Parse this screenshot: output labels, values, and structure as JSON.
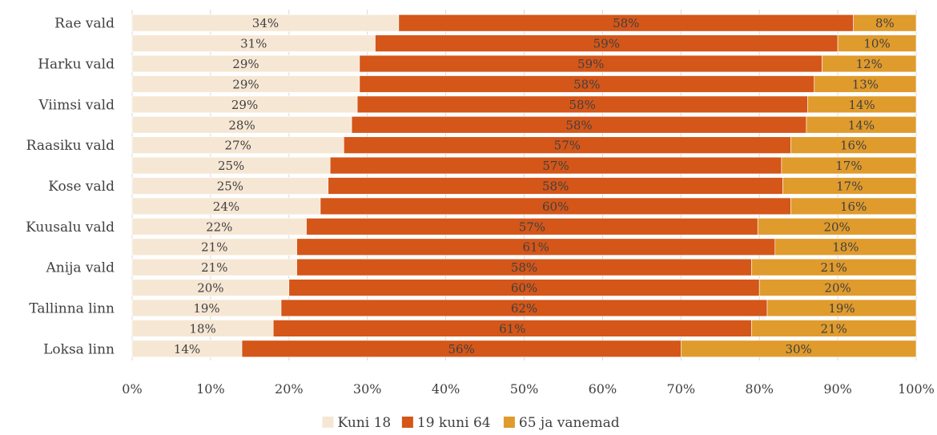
{
  "colors": {
    "kuni18": "#f6e7d4",
    "age19_64": "#d45619",
    "age65": "#e09b2d",
    "grid": "#d9d9d9",
    "text": "#404040"
  },
  "chart_data": {
    "type": "bar",
    "orientation": "horizontal",
    "stacked": "percent",
    "categories": [
      "Rae vald",
      "",
      "Harku vald",
      "",
      "Viimsi vald",
      "",
      "Raasiku vald",
      "",
      "Kose vald",
      "",
      "Kuusalu vald",
      "",
      "Anija vald",
      "",
      "Tallinna linn",
      "",
      "Loksa linn"
    ],
    "series": [
      {
        "name": "Kuni 18",
        "color": "#f6e7d4",
        "values": [
          34,
          31,
          29,
          29,
          29,
          28,
          27,
          25,
          25,
          24,
          22,
          21,
          21,
          20,
          19,
          18,
          14
        ],
        "labels": [
          "34%",
          "31%",
          "29%",
          "29%",
          "29%",
          "28%",
          "27%",
          "25%",
          "25%",
          "24%",
          "22%",
          "21%",
          "21%",
          "20%",
          "19%",
          "18%",
          "14%"
        ]
      },
      {
        "name": "19 kuni 64",
        "color": "#d45619",
        "values": [
          58,
          59,
          59,
          58,
          58,
          58,
          57,
          57,
          58,
          60,
          57,
          61,
          58,
          60,
          62,
          61,
          56
        ],
        "labels": [
          "58%",
          "59%",
          "59%",
          "58%",
          "58%",
          "58%",
          "57%",
          "57%",
          "58%",
          "60%",
          "57%",
          "61%",
          "58%",
          "60%",
          "62%",
          "61%",
          "56%"
        ]
      },
      {
        "name": "65 ja vanemad",
        "color": "#e09b2d",
        "values": [
          8,
          10,
          12,
          13,
          14,
          14,
          16,
          17,
          17,
          16,
          20,
          18,
          21,
          20,
          19,
          21,
          30
        ],
        "labels": [
          "8%",
          "10%",
          "12%",
          "13%",
          "14%",
          "14%",
          "16%",
          "17%",
          "17%",
          "16%",
          "20%",
          "18%",
          "21%",
          "20%",
          "19%",
          "21%",
          "30%"
        ]
      }
    ],
    "xlim": [
      0,
      100
    ],
    "xticks": [
      "0%",
      "10%",
      "20%",
      "30%",
      "40%",
      "50%",
      "60%",
      "70%",
      "80%",
      "90%",
      "100%"
    ],
    "grid": "vertical",
    "legend_position": "bottom"
  }
}
